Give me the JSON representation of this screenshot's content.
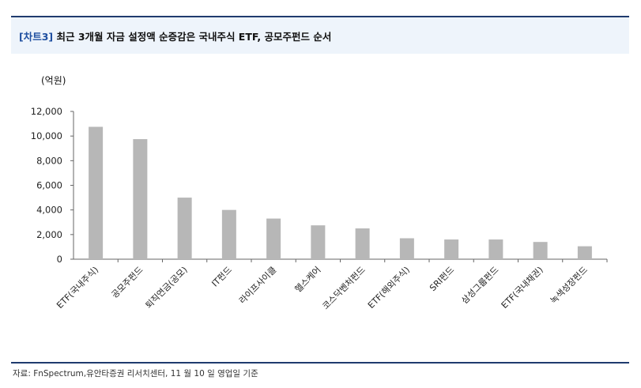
{
  "header": {
    "tag": "[차트3]",
    "title": "최근 3개월 자금 설정액 순증감은 국내주식 ETF, 공모주펀드 순서"
  },
  "chart_data": {
    "type": "bar",
    "unit_label": "(억원)",
    "categories": [
      "ETF(국내주식)",
      "공모주펀드",
      "퇴직연금(공모)",
      "IT펀드",
      "라이프사이클",
      "헬스케어",
      "코스닥벤처펀드",
      "ETF(해외주식)",
      "SRI펀드",
      "삼성그룹펀드",
      "ETF(국내채권)",
      "녹색성장펀드"
    ],
    "values": [
      10750,
      9750,
      5000,
      4000,
      3300,
      2750,
      2500,
      1700,
      1600,
      1600,
      1400,
      1050
    ],
    "ylim": [
      0,
      12000
    ],
    "yticks": [
      "0",
      "2,000",
      "4,000",
      "6,000",
      "8,000",
      "10,000",
      "12,000"
    ],
    "bar_color": "#b7b7b7",
    "grid": false,
    "legend": "none"
  },
  "footer": {
    "source": "자료: FnSpectrum,유안타증권 리서치센터, 11 월 10 일 영업일 기준"
  }
}
